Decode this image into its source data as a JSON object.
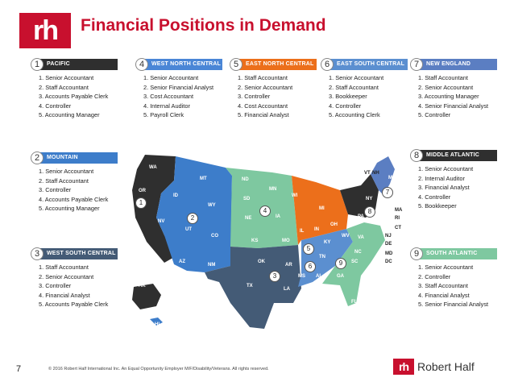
{
  "header": {
    "logo_text": "rh",
    "title": "Financial Positions in Demand"
  },
  "regions": {
    "pacific": {
      "number": "1",
      "name": "PACIFIC",
      "items": [
        "1. Senior Accountant",
        "2. Staff Accountant",
        "3. Accounts Payable Clerk",
        "4. Controller",
        "5. Accounting Manager"
      ]
    },
    "west_north_central": {
      "number": "4",
      "name": "WEST NORTH CENTRAL",
      "items": [
        "1. Senior Accountant",
        "2. Senior Financial Analyst",
        "3. Cost Accountant",
        "4. Internal Auditor",
        "5. Payroll Clerk"
      ]
    },
    "east_north_central": {
      "number": "5",
      "name": "EAST NORTH CENTRAL",
      "items": [
        "1. Staff Accountant",
        "2. Senior Accountant",
        "3. Controller",
        "4. Cost Accountant",
        "5. Financial Analyst"
      ]
    },
    "east_south_central": {
      "number": "6",
      "name": "EAST SOUTH CENTRAL",
      "items": [
        "1. Senior Accountant",
        "2. Staff Accountant",
        "3. Bookkeeper",
        "4. Controller",
        "5. Accounting Clerk"
      ]
    },
    "new_england": {
      "number": "7",
      "name": "NEW ENGLAND",
      "items": [
        "1. Staff Accountant",
        "2. Senior Accountant",
        "3. Accounting Manager",
        "4. Senior Financial Analyst",
        "5. Controller"
      ]
    },
    "mountain": {
      "number": "2",
      "name": "MOUNTAIN",
      "items": [
        "1. Senior Accountant",
        "2. Staff Accountant",
        "3. Controller",
        "4. Accounts Payable Clerk",
        "5. Accounting Manager"
      ]
    },
    "middle_atlantic": {
      "number": "8",
      "name": "MIDDLE ATLANTIC",
      "items": [
        "1. Senior Accountant",
        "2. Internal Auditor",
        "3. Financial Analyst",
        "4. Controller",
        "5. Bookkeeper"
      ]
    },
    "west_south_central": {
      "number": "3",
      "name": "WEST SOUTH CENTRAL",
      "items": [
        "1. Staff Accountant",
        "2. Senior Accountant",
        "3. Controller",
        "4. Financial Analyst",
        "5. Accounts Payable Clerk"
      ]
    },
    "south_atlantic": {
      "number": "9",
      "name": "SOUTH ATLANTIC",
      "items": [
        "1. Senior Accountant",
        "2. Controller",
        "3. Staff Accountant",
        "4. Financial Analyst",
        "5. Senior Financial Analyst"
      ]
    }
  },
  "map": {
    "state_labels": [
      "WA",
      "OR",
      "CA",
      "ID",
      "NV",
      "MT",
      "WY",
      "UT",
      "AZ",
      "CO",
      "NM",
      "ND",
      "SD",
      "NE",
      "KS",
      "OK",
      "TX",
      "MN",
      "IA",
      "MO",
      "AR",
      "LA",
      "WI",
      "IL",
      "MI",
      "IN",
      "OH",
      "KY",
      "TN",
      "MS",
      "AL",
      "GA",
      "FL",
      "SC",
      "NC",
      "VA",
      "WV",
      "PA",
      "NY",
      "VT",
      "NH",
      "ME",
      "MA",
      "RI",
      "CT",
      "NJ",
      "DE",
      "MD",
      "DC",
      "AK",
      "HI"
    ],
    "region_markers": [
      "1",
      "2",
      "3",
      "4",
      "5",
      "6",
      "7",
      "8",
      "9"
    ]
  },
  "footer": {
    "page_number": "7",
    "legal": "© 2016 Robert Half International Inc. An Equal Opportunity Employer M/F/Disability/Veterans. All rights reserved.",
    "brand_mark": "rh",
    "brand_name": "Robert Half"
  }
}
